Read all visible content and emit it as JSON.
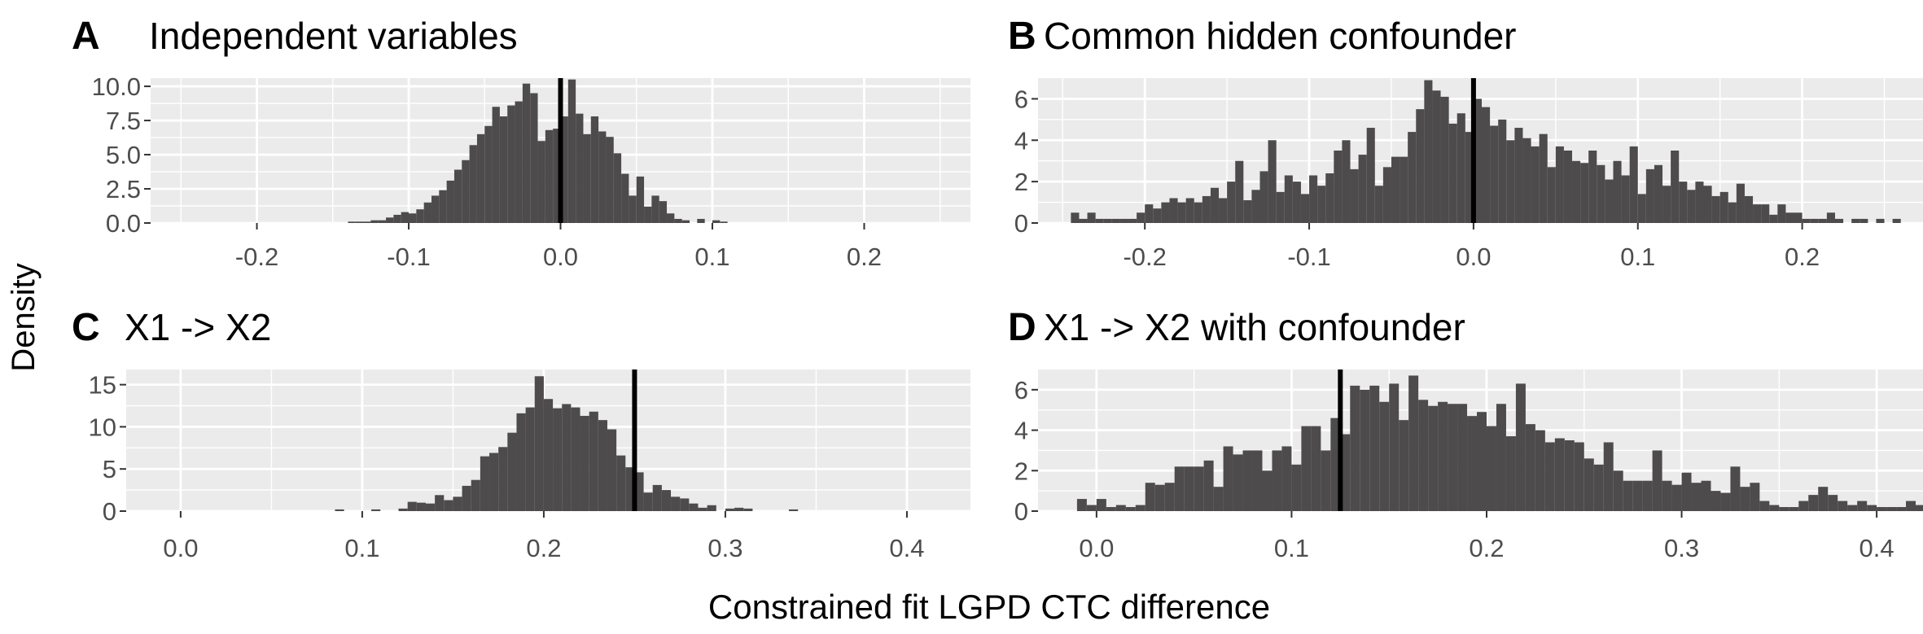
{
  "figure": {
    "ylabel": "Density",
    "xlabel": "Constrained fit LGPD CTC difference"
  },
  "chart_data": [
    {
      "type": "bar",
      "panel": "A",
      "title": "Independent variables",
      "xlim": [
        -0.27,
        0.27
      ],
      "ylim": [
        0,
        10.6
      ],
      "xticks": [
        -0.2,
        -0.1,
        0.0,
        0.1,
        0.2
      ],
      "xtick_labels": [
        "-0.2",
        "-0.1",
        "0.0",
        "0.1",
        "0.2"
      ],
      "yticks": [
        0,
        2.5,
        5,
        7.5,
        10
      ],
      "ytick_labels": [
        "0.0",
        "2.5",
        "5.0",
        "7.5",
        "10.0"
      ],
      "vline": 0.0,
      "bin_start": -0.14,
      "bin_width": 0.005,
      "values": [
        0.1,
        0.1,
        0.1,
        0.2,
        0.2,
        0.4,
        0.6,
        0.8,
        0.7,
        1.0,
        1.5,
        2.0,
        2.4,
        3.1,
        3.9,
        4.6,
        5.7,
        6.5,
        7.1,
        8.5,
        7.8,
        8.6,
        8.9,
        10.2,
        9.5,
        6.0,
        6.8,
        6.9,
        7.8,
        10.5,
        8.0,
        6.5,
        7.8,
        6.7,
        6.3,
        5.1,
        3.6,
        2.0,
        3.4,
        1.2,
        2.0,
        1.6,
        0.7,
        0.3,
        0.2,
        0,
        0.3,
        0,
        0.2,
        0.1
      ]
    },
    {
      "type": "bar",
      "panel": "B",
      "title": "Common hidden confounder",
      "xlim": [
        -0.265,
        0.275
      ],
      "ylim": [
        0,
        7.0
      ],
      "xticks": [
        -0.2,
        -0.1,
        0.0,
        0.1,
        0.2
      ],
      "xtick_labels": [
        "-0.2",
        "-0.1",
        "0.0",
        "0.1",
        "0.2"
      ],
      "yticks": [
        0,
        2,
        4,
        6
      ],
      "ytick_labels": [
        "0",
        "2",
        "4",
        "6"
      ],
      "vline": 0.0,
      "bin_start": -0.245,
      "bin_width": 0.005,
      "values": [
        0.5,
        0.2,
        0.5,
        0.2,
        0.2,
        0.2,
        0.2,
        0.2,
        0.5,
        0.9,
        0.7,
        1.0,
        1.2,
        1.0,
        1.2,
        1.0,
        1.3,
        1.7,
        1.2,
        2.0,
        3.0,
        1.1,
        1.6,
        2.5,
        4.0,
        1.5,
        2.3,
        2.0,
        1.4,
        2.3,
        1.8,
        2.4,
        3.5,
        4.0,
        2.6,
        3.3,
        4.6,
        1.8,
        2.7,
        3.2,
        3.2,
        4.4,
        5.5,
        6.9,
        6.4,
        6.1,
        4.8,
        5.3,
        4.4,
        6.0,
        5.6,
        4.7,
        5.0,
        4.0,
        4.6,
        4.1,
        3.7,
        4.3,
        2.7,
        3.7,
        3.5,
        3.0,
        2.9,
        3.5,
        2.8,
        2.1,
        3.0,
        2.3,
        3.7,
        1.4,
        2.6,
        2.8,
        1.8,
        3.5,
        2.0,
        1.6,
        2.0,
        1.8,
        1.3,
        1.5,
        1.0,
        1.9,
        1.3,
        0.9,
        0.9,
        0.4,
        0.9,
        0.5,
        0.5,
        0.2,
        0.2,
        0.2,
        0.5,
        0.2,
        0,
        0.2,
        0.2,
        0,
        0.2,
        0,
        0.2
      ]
    },
    {
      "type": "bar",
      "panel": "C",
      "title": "X1 -> X2",
      "xlim": [
        -0.03,
        0.435
      ],
      "ylim": [
        0,
        16.8
      ],
      "xticks": [
        0.0,
        0.1,
        0.2,
        0.3,
        0.4
      ],
      "xtick_labels": [
        "0.0",
        "0.1",
        "0.2",
        "0.3",
        "0.4"
      ],
      "yticks": [
        0,
        5,
        10,
        15
      ],
      "ytick_labels": [
        "0",
        "5",
        "10",
        "15"
      ],
      "vline": 0.25,
      "bin_start": 0.085,
      "bin_width": 0.005,
      "values": [
        0.2,
        0,
        0,
        0,
        0.2,
        0,
        0,
        0.3,
        1.1,
        1.0,
        0.9,
        1.9,
        1.3,
        1.7,
        3.0,
        3.7,
        6.5,
        6.9,
        7.6,
        9.3,
        11.6,
        12.3,
        16.0,
        13.3,
        12.2,
        12.7,
        12.3,
        11.3,
        11.8,
        10.8,
        9.7,
        6.6,
        5.2,
        4.6,
        2.2,
        3.1,
        2.5,
        1.7,
        1.5,
        0.9,
        0.4,
        0.7,
        0,
        0.3,
        0.4,
        0.3,
        0,
        0,
        0,
        0,
        0.2
      ]
    },
    {
      "type": "bar",
      "panel": "D",
      "title": "X1 -> X2 with confounder",
      "xlim": [
        -0.03,
        0.425
      ],
      "ylim": [
        0,
        7.0
      ],
      "xticks": [
        0.0,
        0.1,
        0.2,
        0.3,
        0.4
      ],
      "xtick_labels": [
        "0.0",
        "0.1",
        "0.2",
        "0.3",
        "0.4"
      ],
      "yticks": [
        0,
        2,
        4,
        6
      ],
      "ytick_labels": [
        "0",
        "2",
        "4",
        "6"
      ],
      "vline": 0.125,
      "bin_start": -0.01,
      "bin_width": 0.005,
      "values": [
        0.6,
        0.3,
        0.6,
        0.2,
        0.3,
        0.2,
        0.3,
        1.4,
        1.3,
        1.4,
        2.2,
        2.2,
        2.2,
        2.5,
        1.2,
        3.2,
        2.8,
        3.0,
        3.0,
        2.0,
        3.0,
        3.2,
        2.3,
        4.2,
        4.2,
        3.0,
        4.6,
        3.8,
        6.2,
        6.0,
        6.2,
        5.4,
        6.3,
        4.5,
        6.7,
        5.5,
        5.2,
        5.4,
        5.3,
        5.3,
        4.7,
        4.9,
        4.2,
        5.3,
        3.7,
        6.3,
        4.3,
        4.0,
        3.4,
        3.6,
        3.5,
        3.4,
        2.6,
        2.3,
        3.4,
        2.0,
        1.5,
        1.5,
        1.5,
        3.0,
        1.5,
        1.3,
        1.9,
        1.4,
        1.5,
        1.0,
        0.9,
        2.2,
        1.2,
        1.4,
        0.5,
        0.3,
        0.2,
        0.2,
        0.5,
        0.8,
        1.2,
        0.8,
        0.5,
        0.3,
        0.5,
        0.3,
        0.2,
        0.2,
        0.2,
        0.5,
        0.3,
        0.2,
        0,
        0.4,
        0.2,
        0,
        0.2,
        0,
        0.3,
        0.1,
        0,
        0,
        0.2
      ]
    }
  ]
}
